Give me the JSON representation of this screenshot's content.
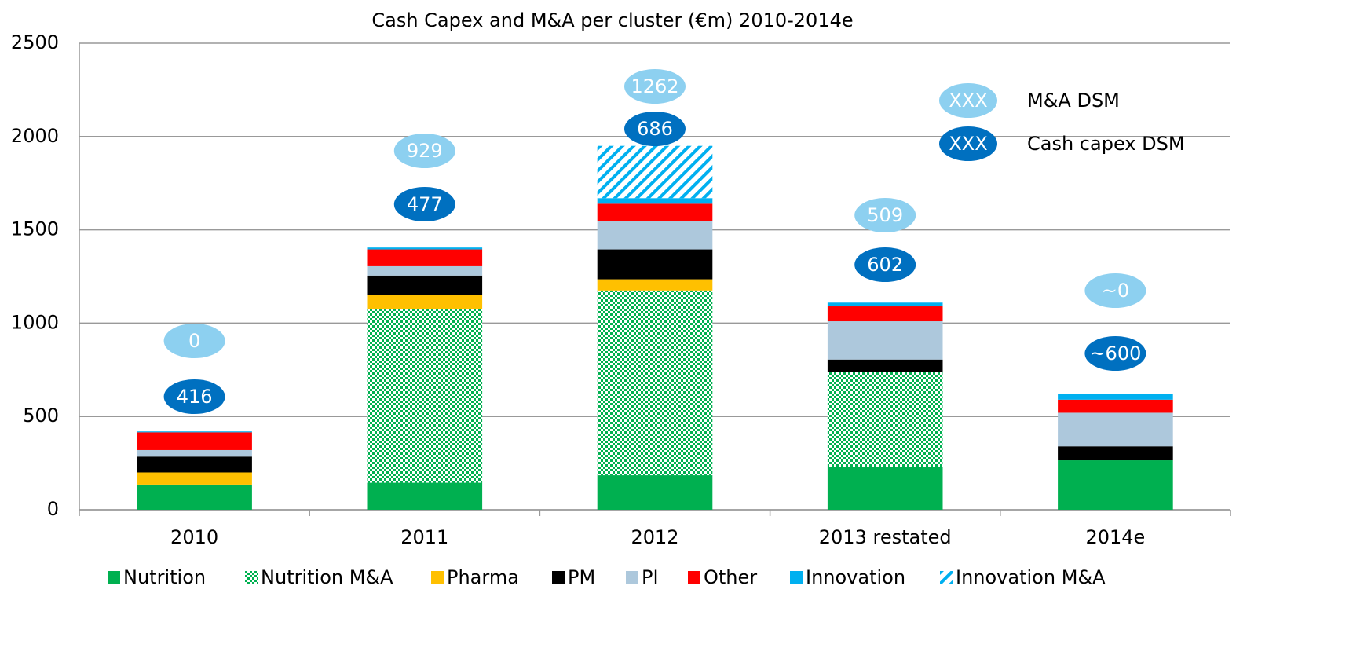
{
  "chart_data": {
    "type": "bar",
    "stacked": true,
    "title": "Cash Capex and M&A per cluster (€m) 2010-2014e",
    "categories": [
      "2010",
      "2011",
      "2012",
      "2013 restated",
      "2014e"
    ],
    "series": [
      {
        "name": "Nutrition",
        "color": "#00b050",
        "values": [
          135,
          145,
          185,
          230,
          265
        ]
      },
      {
        "name": "Nutrition M&A",
        "color": "#00b050",
        "pattern": "dots",
        "values": [
          0,
          930,
          990,
          510,
          0
        ]
      },
      {
        "name": "Pharma",
        "color": "#ffc000",
        "values": [
          65,
          75,
          60,
          0,
          0
        ]
      },
      {
        "name": "PM",
        "color": "#000000",
        "values": [
          85,
          105,
          160,
          65,
          75
        ]
      },
      {
        "name": "PI",
        "color": "#adc8dc",
        "values": [
          35,
          50,
          150,
          205,
          180
        ]
      },
      {
        "name": "Other",
        "color": "#ff0000",
        "values": [
          95,
          90,
          95,
          80,
          70
        ]
      },
      {
        "name": "Innovation",
        "color": "#00b0f0",
        "values": [
          5,
          10,
          30,
          20,
          30
        ]
      },
      {
        "name": "Innovation M&A",
        "color": "#00b0f0",
        "pattern": "diagonal",
        "values": [
          0,
          0,
          280,
          0,
          0
        ]
      }
    ],
    "ma_labels": [
      "0",
      "929",
      "1262",
      "509",
      "~0"
    ],
    "capex_labels": [
      "416",
      "477",
      "686",
      "602",
      "~600"
    ],
    "bubble_legend": {
      "ma_marker": "XXX",
      "ma_text": "M&A DSM",
      "capex_marker": "XXX",
      "capex_text": "Cash capex DSM",
      "ma_color": "#8dd0f0",
      "capex_color": "#0070c0"
    },
    "ylim": [
      0,
      2500
    ],
    "yticks": [
      0,
      500,
      1000,
      1500,
      2000,
      2500
    ],
    "grid": true,
    "legend": "bottom"
  }
}
